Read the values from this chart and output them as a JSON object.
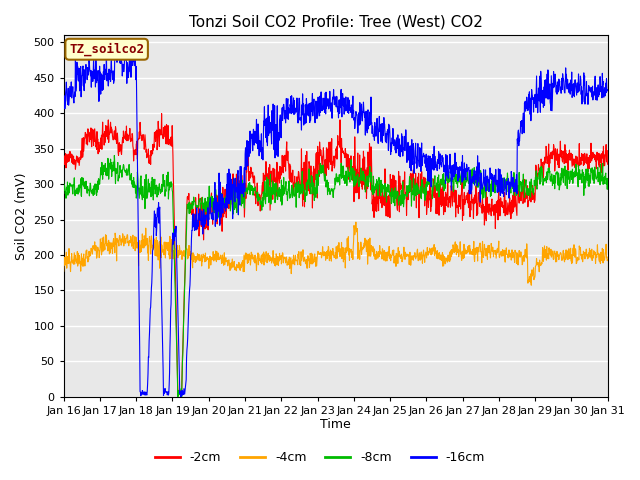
{
  "title": "Tonzi Soil CO2 Profile: Tree (West) CO2",
  "xlabel": "Time",
  "ylabel": "Soil CO2 (mV)",
  "ylim": [
    0,
    510
  ],
  "yticks": [
    0,
    50,
    100,
    150,
    200,
    250,
    300,
    350,
    400,
    450,
    500
  ],
  "n_days": 15,
  "pts_per_day": 96,
  "colors": {
    "red": "#ff0000",
    "orange": "#ffa500",
    "green": "#00bb00",
    "blue": "#0000ff"
  },
  "legend_labels": [
    "-2cm",
    "-4cm",
    "-8cm",
    "-16cm"
  ],
  "box_label": "TZ_soilco2",
  "box_facecolor": "#ffffcc",
  "box_edgecolor": "#996600",
  "box_text_color": "#880000",
  "fig_bg_color": "#ffffff",
  "plot_bg_color": "#e8e8e8",
  "grid_color": "#ffffff",
  "title_fontsize": 11,
  "axis_label_fontsize": 9,
  "tick_label_fontsize": 8,
  "legend_fontsize": 9,
  "line_width": 0.8
}
